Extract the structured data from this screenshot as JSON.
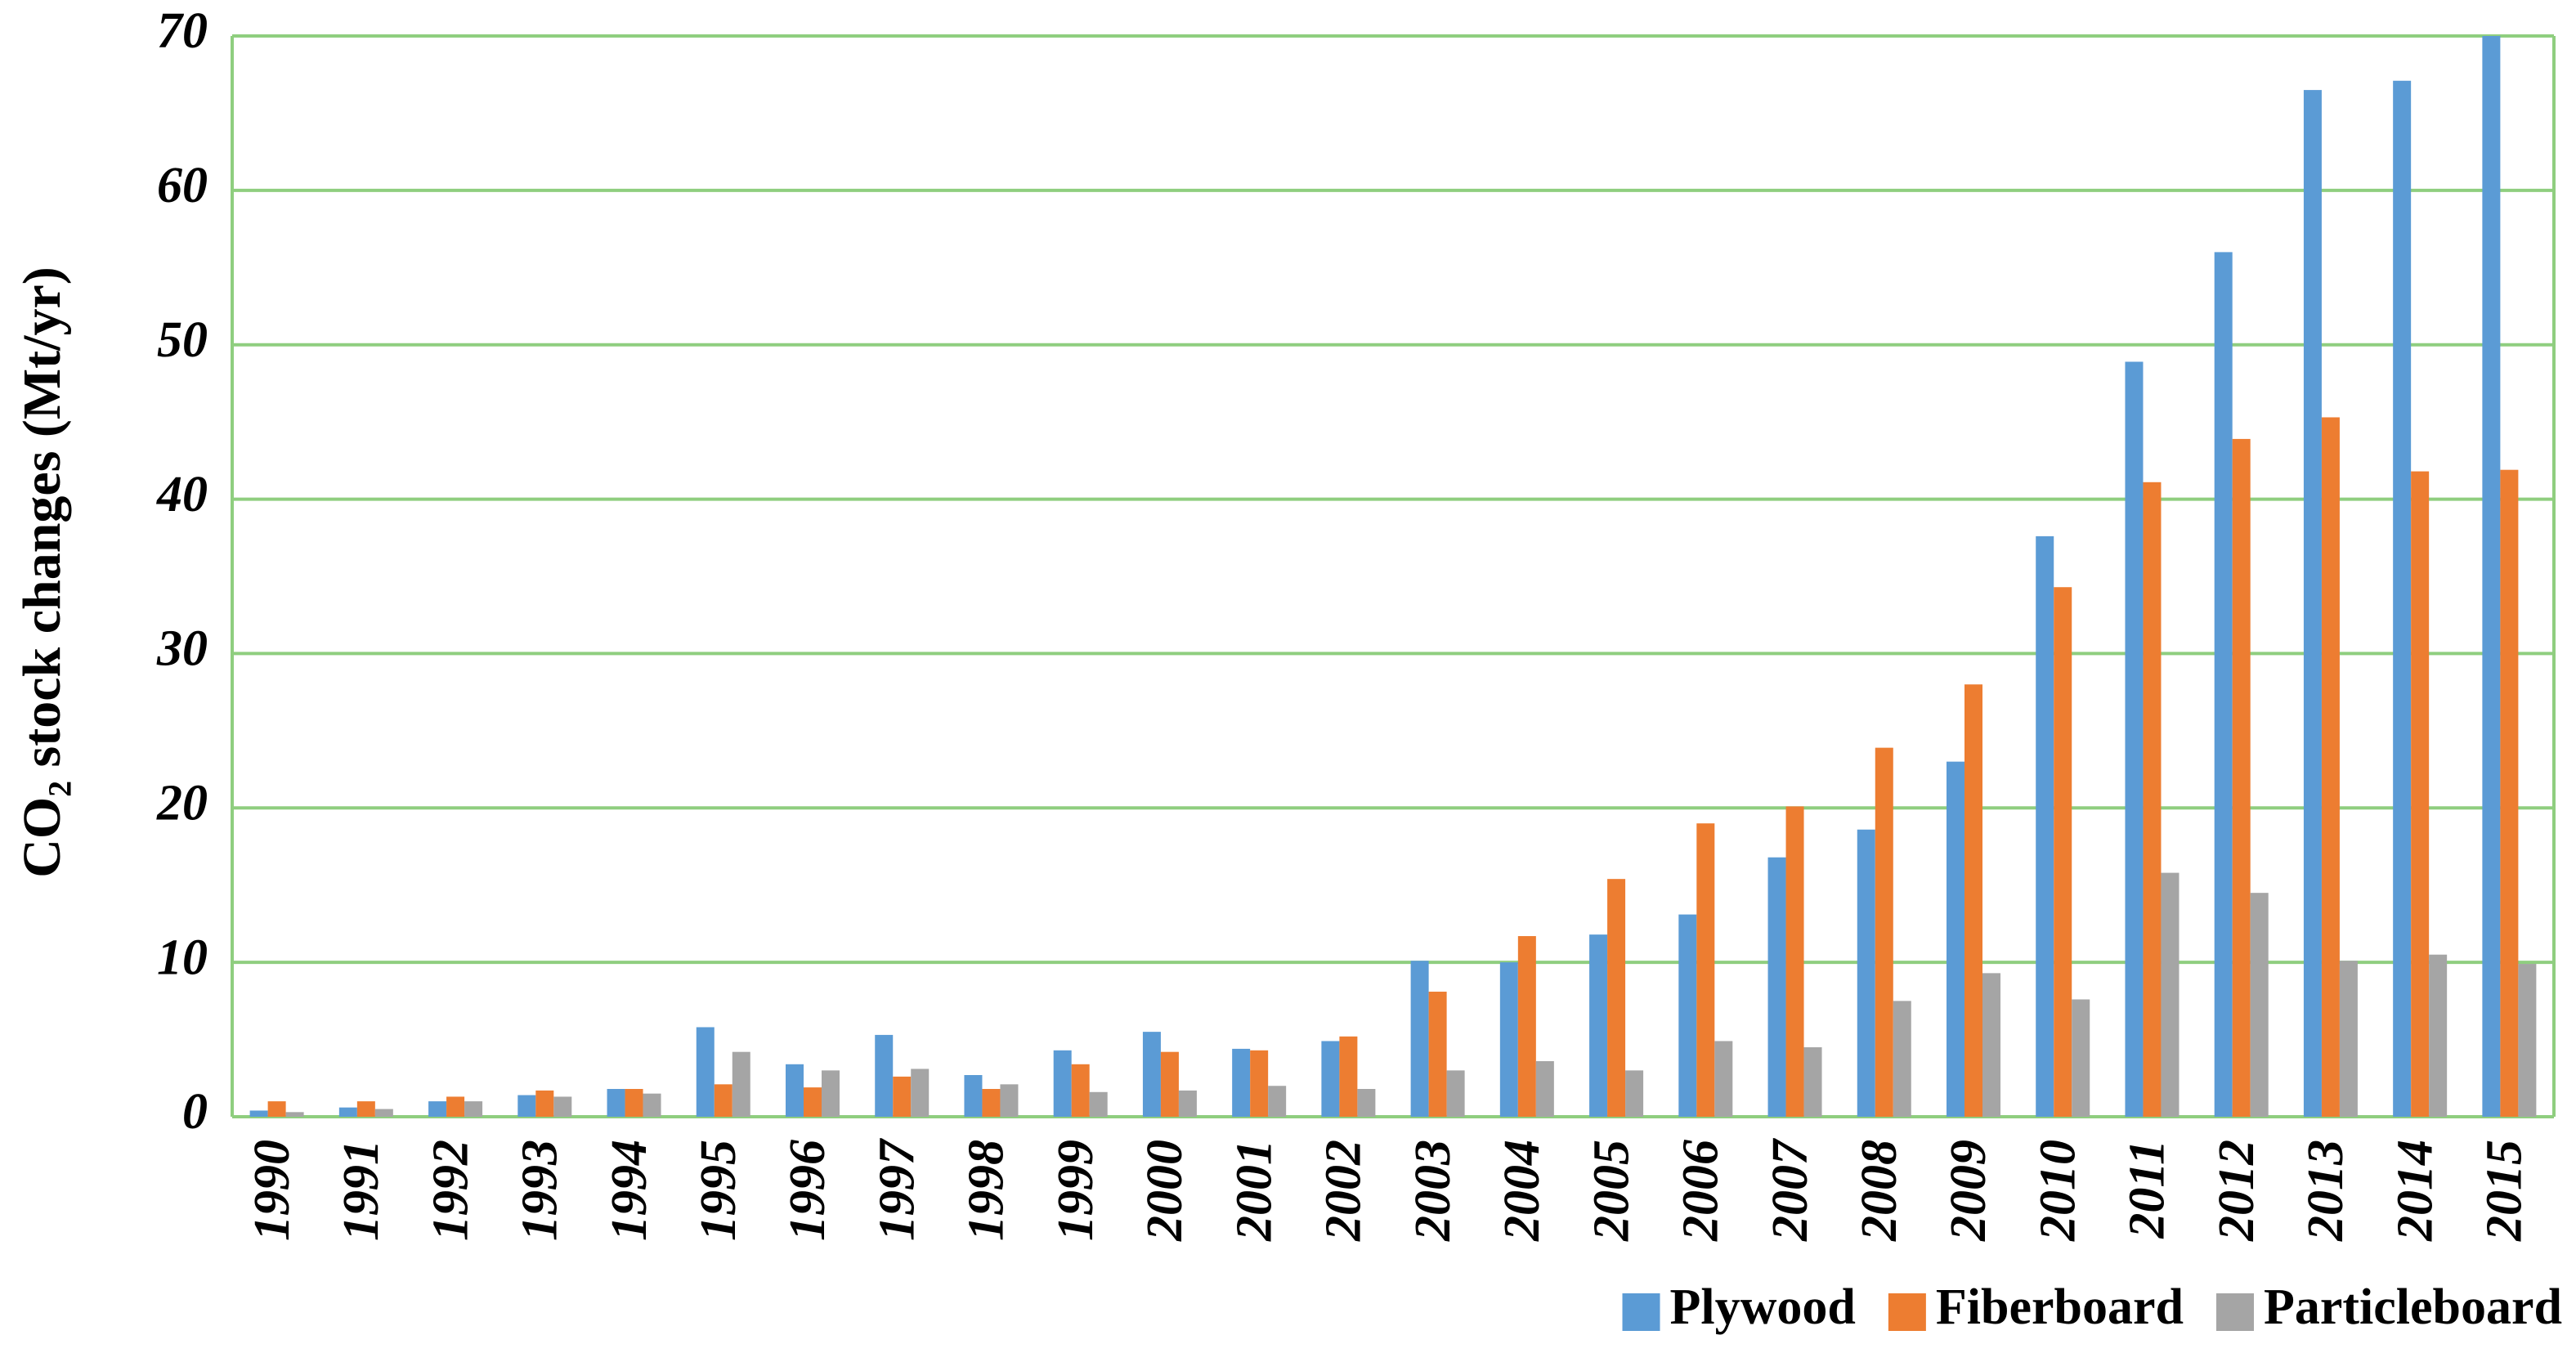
{
  "chart_data": {
    "type": "bar",
    "y_label": "CO₂ stock changes (Mt/yr)",
    "categories": [
      "1990",
      "1991",
      "1992",
      "1993",
      "1994",
      "1995",
      "1996",
      "1997",
      "1998",
      "1999",
      "2000",
      "2001",
      "2002",
      "2003",
      "2004",
      "2005",
      "2006",
      "2007",
      "2008",
      "2009",
      "2010",
      "2011",
      "2012",
      "2013",
      "2014",
      "2015"
    ],
    "series": [
      {
        "name": "Plywood",
        "color": "#5b9bd5",
        "values": [
          0.4,
          0.6,
          1.0,
          1.4,
          1.8,
          5.8,
          3.4,
          5.3,
          2.7,
          4.3,
          5.5,
          4.4,
          4.9,
          10.1,
          10.0,
          11.8,
          13.1,
          16.8,
          18.6,
          23.0,
          37.6,
          48.9,
          56.0,
          66.5,
          67.1,
          70
        ]
      },
      {
        "name": "Fiberboard",
        "color": "#ed7d31",
        "values": [
          1.0,
          1.0,
          1.3,
          1.7,
          1.8,
          2.1,
          1.9,
          2.6,
          1.8,
          3.4,
          4.2,
          4.3,
          5.2,
          8.1,
          11.7,
          15.4,
          19.0,
          20.1,
          23.9,
          28.0,
          34.3,
          41.1,
          43.9,
          45.3,
          41.8,
          41.9
        ]
      },
      {
        "name": "Particleboard",
        "color": "#a5a5a5",
        "values": [
          0.3,
          0.5,
          1.0,
          1.3,
          1.5,
          4.2,
          3.0,
          3.1,
          2.1,
          1.6,
          1.7,
          2.0,
          1.8,
          3.0,
          3.6,
          3.0,
          4.9,
          4.5,
          7.5,
          9.3,
          7.6,
          15.8,
          14.5,
          10.1,
          10.5,
          9.9
        ]
      }
    ],
    "ylim": [
      0,
      70
    ],
    "yticks": [
      0,
      10,
      20,
      30,
      40,
      50,
      60,
      70
    ],
    "grid": true,
    "grid_color": "#8fce7f",
    "legend": "bottom-right"
  }
}
